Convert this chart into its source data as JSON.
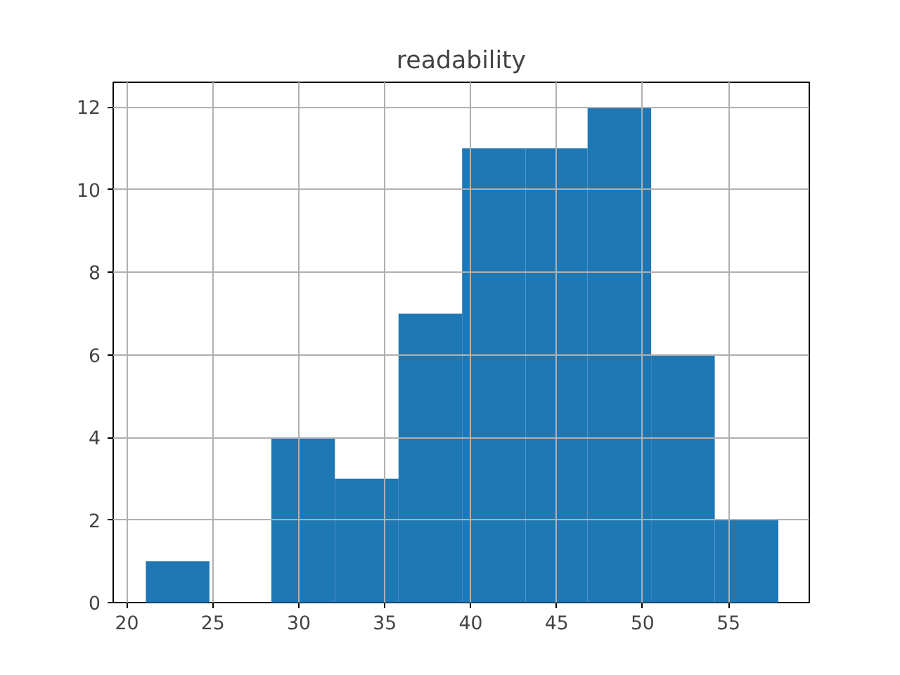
{
  "chart_data": {
    "type": "histogram",
    "title": "readability",
    "bins": [
      21.1,
      24.8,
      28.4,
      32.1,
      35.8,
      39.5,
      43.2,
      46.8,
      50.5,
      54.2,
      57.9
    ],
    "values": [
      1,
      0,
      4,
      3,
      7,
      11,
      11,
      12,
      6,
      2
    ],
    "color": "#1f77b4",
    "xlim": [
      19.2,
      59.7
    ],
    "ylim": [
      0,
      12.6
    ],
    "xticks": [
      20,
      25,
      30,
      35,
      40,
      45,
      50,
      55
    ],
    "yticks": [
      0,
      2,
      4,
      6,
      8,
      10,
      12
    ],
    "grid": true
  }
}
